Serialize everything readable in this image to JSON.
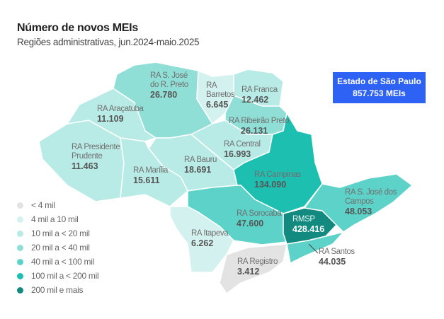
{
  "title": "Número de novos MEIs",
  "subtitle": "Regiões administrativas, jun.2024-maio.2025",
  "state_box": {
    "name": "Estado de São Paulo",
    "value": "857.753 MEIs",
    "color": "#2e62f4"
  },
  "legend": [
    {
      "label": "< 4 mil",
      "color": "#e3e3e3"
    },
    {
      "label": "4 mil a 10 mil",
      "color": "#d3f2ef"
    },
    {
      "label": "10 mil a < 20 mil",
      "color": "#b9ebe6"
    },
    {
      "label": "20 mil a < 40 mil",
      "color": "#8fdfd7"
    },
    {
      "label": "40 mil a < 100 mil",
      "color": "#5dd2c8"
    },
    {
      "label": "100 mil a < 200 mil",
      "color": "#1dbfb1"
    },
    {
      "label": "200 mil e mais",
      "color": "#138a80"
    }
  ],
  "regions": [
    {
      "id": "presidente-prudente",
      "name": "RA Presidente Prudente",
      "value": "11.463",
      "tier": 2
    },
    {
      "id": "aracatuba",
      "name": "RA Araçatuba",
      "value": "11.109",
      "tier": 2
    },
    {
      "id": "sao-jose-rio-preto",
      "name": "RA S. José do R. Preto",
      "value": "26.780",
      "tier": 3
    },
    {
      "id": "barretos",
      "name": "RA Barretos",
      "value": "6.645",
      "tier": 1
    },
    {
      "id": "franca",
      "name": "RA Franca",
      "value": "12.462",
      "tier": 2
    },
    {
      "id": "ribeirao-preto",
      "name": "RA Ribeirão Preto",
      "value": "26.131",
      "tier": 3
    },
    {
      "id": "central",
      "name": "RA Central",
      "value": "16.993",
      "tier": 2
    },
    {
      "id": "bauru",
      "name": "RA Bauru",
      "value": "18.691",
      "tier": 2
    },
    {
      "id": "marilia",
      "name": "RA Marília",
      "value": "15.611",
      "tier": 2
    },
    {
      "id": "campinas",
      "name": "RA Campinas",
      "value": "134.090",
      "tier": 5
    },
    {
      "id": "sorocaba",
      "name": "RA Sorocaba",
      "value": "47.600",
      "tier": 4
    },
    {
      "id": "itapeva",
      "name": "RA Itapeva",
      "value": "6.262",
      "tier": 1
    },
    {
      "id": "registro",
      "name": "RA Registro",
      "value": "3.412",
      "tier": 0
    },
    {
      "id": "rmsp",
      "name": "RMSP",
      "value": "428.416",
      "tier": 6
    },
    {
      "id": "santos",
      "name": "RA Santos",
      "value": "44.035",
      "tier": 4
    },
    {
      "id": "sao-jose-campos",
      "name": "RA S. José dos Campos",
      "value": "48.053",
      "tier": 4
    }
  ]
}
